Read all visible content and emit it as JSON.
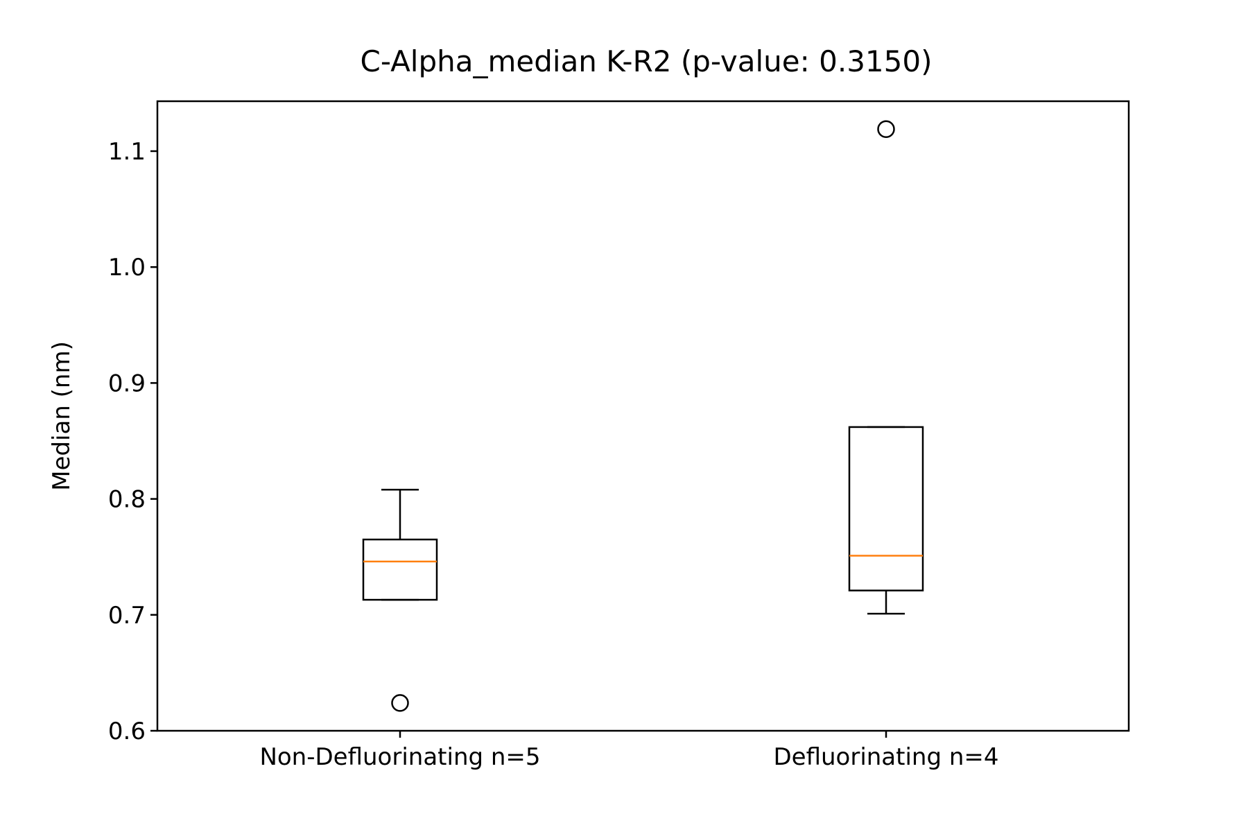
{
  "chart_data": {
    "type": "box",
    "title": "C-Alpha_median K-R2 (p-value: 0.3150)",
    "xlabel": "",
    "ylabel": "Median (nm)",
    "ylim": [
      0.6,
      1.143
    ],
    "yticks": [
      0.6,
      0.7,
      0.8,
      0.9,
      1.0,
      1.1
    ],
    "ytick_labels": [
      "0.6",
      "0.7",
      "0.8",
      "0.9",
      "1.0",
      "1.1"
    ],
    "categories": [
      "Non-Defluorinating n=5",
      "Defluorinating n=4"
    ],
    "boxes": [
      {
        "category": "Non-Defluorinating n=5",
        "whisker_low": 0.713,
        "q1": 0.713,
        "median": 0.746,
        "q3": 0.765,
        "whisker_high": 0.808,
        "outliers": [
          0.624
        ]
      },
      {
        "category": "Defluorinating n=4",
        "whisker_low": 0.701,
        "q1": 0.721,
        "median": 0.751,
        "q3": 0.862,
        "whisker_high": 0.862,
        "outliers": [
          1.119
        ]
      }
    ],
    "grid": false,
    "colors": {
      "box": "#000000",
      "median": "#ff7f0e",
      "outlier": "#000000",
      "axes": "#000000",
      "background": "#ffffff"
    }
  }
}
